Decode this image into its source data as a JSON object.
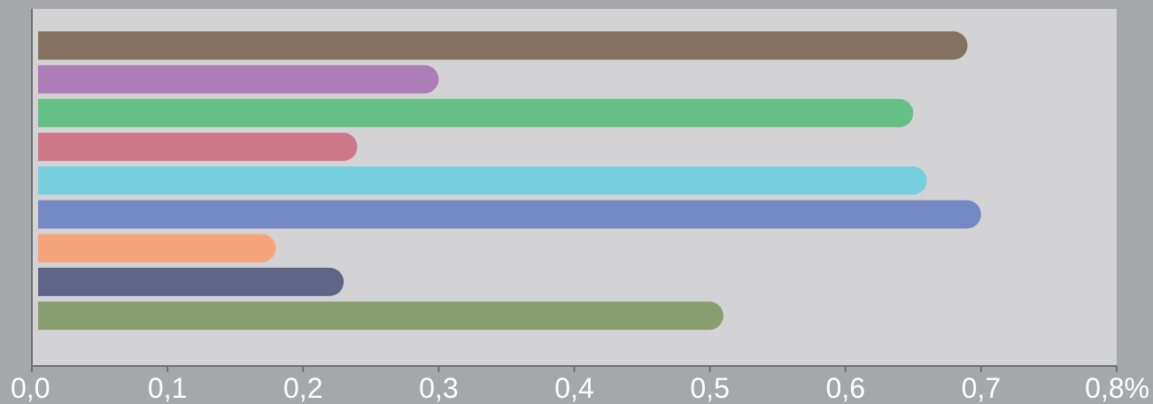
{
  "chart_data": {
    "type": "bar",
    "orientation": "horizontal",
    "values": [
      0.69,
      0.3,
      0.65,
      0.24,
      0.66,
      0.7,
      0.18,
      0.23,
      0.51
    ],
    "colors": [
      "#82725f",
      "#ac7db6",
      "#65c083",
      "#cd7789",
      "#75cfdf",
      "#7489c4",
      "#f6a47c",
      "#606588",
      "#899e70"
    ],
    "xlim": [
      0,
      0.8
    ],
    "xticks": [
      0,
      0.1,
      0.2,
      0.3,
      0.4,
      0.5,
      0.6,
      0.7,
      0.8
    ],
    "xtick_labels": [
      "0,0",
      "0,1",
      "0,2",
      "0,3",
      "0,4",
      "0,5",
      "0,6",
      "0,7",
      "0,8%"
    ],
    "plot_background": "#d3d3d5",
    "page_background": "#a6a7a9",
    "grid": false,
    "legend": "none"
  }
}
